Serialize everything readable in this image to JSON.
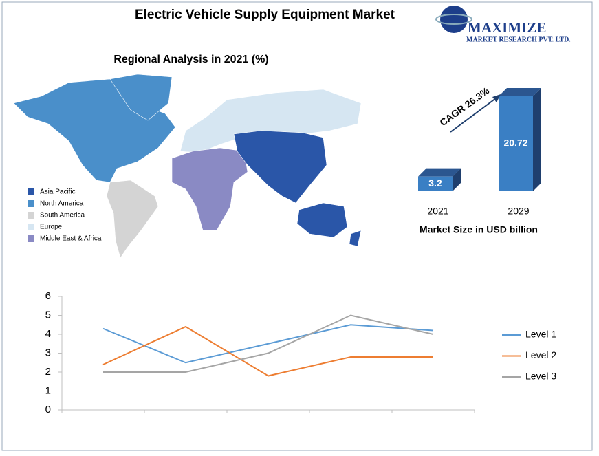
{
  "header": {
    "title": "Electric Vehicle Supply Equipment Market",
    "logo_name": "MAXIMIZE",
    "logo_sub": "MARKET RESEARCH PVT. LTD."
  },
  "map": {
    "title": "Regional Analysis in 2021 (%)",
    "legend": [
      {
        "name": "Asia Pacific",
        "color": "#2a56a8"
      },
      {
        "name": "North America",
        "color": "#4a8fca"
      },
      {
        "name": "South America",
        "color": "#d4d4d4"
      },
      {
        "name": "Europe",
        "color": "#d6e6f2"
      },
      {
        "name": "Middle East & Africa",
        "color": "#8a8ac4"
      }
    ]
  },
  "chart_data": [
    {
      "type": "bar",
      "categories": [
        "2021",
        "2029"
      ],
      "values": [
        3.2,
        20.72
      ],
      "color": "#3a7fc4",
      "xlabel": "Market Size in USD billion",
      "annotation": "CAGR 26.3%"
    },
    {
      "type": "line",
      "categories": [
        null,
        null,
        null,
        null,
        null
      ],
      "series": [
        {
          "name": "Level 1",
          "color": "#5b9bd5",
          "values": [
            4.3,
            2.5,
            3.5,
            4.5,
            4.2
          ]
        },
        {
          "name": "Level 2",
          "color": "#ed7d31",
          "values": [
            2.4,
            4.4,
            1.8,
            2.8,
            2.8
          ]
        },
        {
          "name": "Level 3",
          "color": "#a5a5a5",
          "values": [
            2,
            2,
            3,
            5,
            4
          ]
        }
      ],
      "ylim": [
        0,
        6
      ],
      "yticks": [
        0,
        1,
        2,
        3,
        4,
        5,
        6
      ],
      "grid": false
    }
  ]
}
